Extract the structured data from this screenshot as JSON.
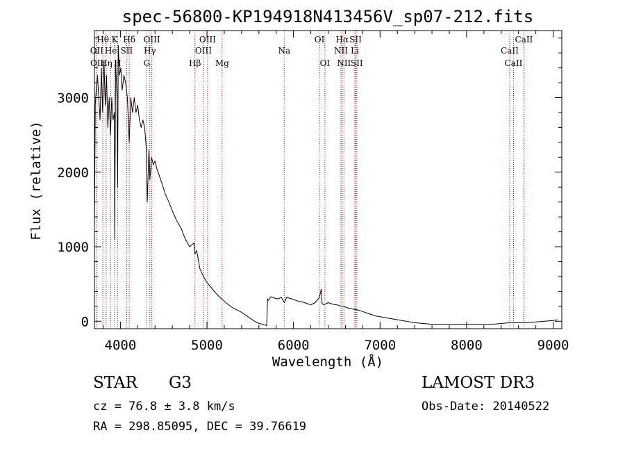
{
  "chart_data": {
    "type": "line",
    "title": "spec-56800-KP194918N413456V_sp07-212.fits",
    "xlabel": "Wavelength (Å)",
    "ylabel": "Flux (relative)",
    "xlim": [
      3700,
      9100
    ],
    "ylim": [
      -100,
      3900
    ],
    "x_ticks": [
      4000,
      5000,
      6000,
      7000,
      8000,
      9000
    ],
    "y_ticks": [
      0,
      1000,
      2000,
      3000
    ],
    "series": [
      {
        "name": "spectrum",
        "x": [
          3700,
          3710,
          3720,
          3735,
          3750,
          3765,
          3780,
          3795,
          3810,
          3825,
          3840,
          3855,
          3870,
          3885,
          3900,
          3915,
          3930,
          3934,
          3945,
          3960,
          3968,
          3975,
          3990,
          4005,
          4020,
          4040,
          4060,
          4080,
          4102,
          4120,
          4140,
          4160,
          4180,
          4200,
          4220,
          4240,
          4260,
          4280,
          4300,
          4310,
          4330,
          4340,
          4360,
          4380,
          4400,
          4420,
          4450,
          4480,
          4520,
          4560,
          4600,
          4650,
          4700,
          4750,
          4800,
          4850,
          4861,
          4880,
          4920,
          4960,
          5000,
          5050,
          5100,
          5150,
          5200,
          5250,
          5300,
          5350,
          5400,
          5450,
          5500,
          5550,
          5600,
          5650,
          5690,
          5700,
          5710,
          5740,
          5780,
          5820,
          5860,
          5895,
          5920,
          5980,
          6050,
          6100,
          6150,
          6200,
          6250,
          6300,
          6320,
          6330,
          6350,
          6400,
          6450,
          6500,
          6563,
          6600,
          6650,
          6700,
          6750,
          6800,
          6850,
          6900,
          6950,
          7000,
          7100,
          7200,
          7300,
          7400,
          7500,
          7600,
          7700,
          7800,
          7900,
          8000,
          8100,
          8200,
          8300,
          8400,
          8498,
          8542,
          8600,
          8662,
          8700,
          8800,
          8900,
          9000,
          9050
        ],
        "values": [
          1300,
          2900,
          3100,
          3300,
          3000,
          2700,
          3400,
          2800,
          3500,
          2900,
          3300,
          2600,
          3000,
          2500,
          3000,
          2700,
          2800,
          1100,
          3500,
          3000,
          1800,
          3700,
          3300,
          3400,
          3100,
          3300,
          3200,
          3000,
          2400,
          3000,
          2800,
          3000,
          2800,
          2900,
          2700,
          2600,
          2700,
          2600,
          2300,
          1600,
          2300,
          1900,
          2200,
          2100,
          2150,
          2050,
          1950,
          1850,
          1700,
          1600,
          1480,
          1350,
          1250,
          1100,
          1000,
          1050,
          900,
          950,
          700,
          600,
          520,
          450,
          380,
          320,
          270,
          220,
          180,
          150,
          120,
          80,
          40,
          0,
          -30,
          -40,
          -60,
          300,
          280,
          330,
          310,
          300,
          320,
          250,
          320,
          300,
          270,
          260,
          240,
          220,
          250,
          320,
          430,
          240,
          220,
          250,
          230,
          220,
          200,
          190,
          170,
          160,
          150,
          130,
          110,
          90,
          70,
          60,
          40,
          20,
          0,
          -20,
          -30,
          -40,
          -40,
          -40,
          -40,
          -40,
          -40,
          -40,
          -40,
          -30,
          -20,
          -20,
          -20,
          -20,
          -20,
          -10,
          0,
          10,
          20
        ]
      }
    ],
    "line_markers": [
      {
        "label": "Hθ",
        "x": 3797,
        "row": 1
      },
      {
        "label": "OII",
        "x": 3727,
        "row": 2
      },
      {
        "label": "OII",
        "x": 3729,
        "row": 3
      },
      {
        "label": "Hη",
        "x": 3835,
        "row": 3
      },
      {
        "label": "He",
        "x": 3889,
        "row": 2
      },
      {
        "label": "K",
        "x": 3934,
        "row": 1
      },
      {
        "label": "H",
        "x": 3968,
        "row": 3
      },
      {
        "label": "SII",
        "x": 4072,
        "row": 2
      },
      {
        "label": "Hδ",
        "x": 4102,
        "row": 1
      },
      {
        "label": "OIII",
        "x": 4363,
        "row": 1
      },
      {
        "label": "Hγ",
        "x": 4340,
        "row": 2
      },
      {
        "label": "G",
        "x": 4305,
        "row": 3
      },
      {
        "label": "OIII",
        "x": 5007,
        "row": 1
      },
      {
        "label": "OIII",
        "x": 4959,
        "row": 2
      },
      {
        "label": "Hβ",
        "x": 4861,
        "row": 3
      },
      {
        "label": "Mg",
        "x": 5175,
        "row": 3
      },
      {
        "label": "Na",
        "x": 5893,
        "row": 2
      },
      {
        "label": "OI",
        "x": 6300,
        "row": 1
      },
      {
        "label": "OI",
        "x": 6363,
        "row": 3
      },
      {
        "label": "Hα",
        "x": 6563,
        "row": 1
      },
      {
        "label": "NII",
        "x": 6548,
        "row": 2
      },
      {
        "label": "NII",
        "x": 6583,
        "row": 3
      },
      {
        "label": "SII",
        "x": 6717,
        "row": 1
      },
      {
        "label": "Li",
        "x": 6708,
        "row": 2
      },
      {
        "label": "SII",
        "x": 6731,
        "row": 3
      },
      {
        "label": "CaII",
        "x": 8662,
        "row": 1
      },
      {
        "label": "CaII",
        "x": 8498,
        "row": 2
      },
      {
        "label": "CaII",
        "x": 8542,
        "row": 3
      }
    ]
  },
  "info": {
    "class_label": "STAR",
    "subclass": "G3",
    "survey": "LAMOST DR3",
    "cz": "cz = 76.8 ± 3.8 km/s",
    "obs_date": "Obs-Date: 20140522",
    "coords": "RA = 298.85095, DEC =  39.76619"
  },
  "colors": {
    "line_marker": "#cc0000",
    "spectrum": "#000000"
  }
}
